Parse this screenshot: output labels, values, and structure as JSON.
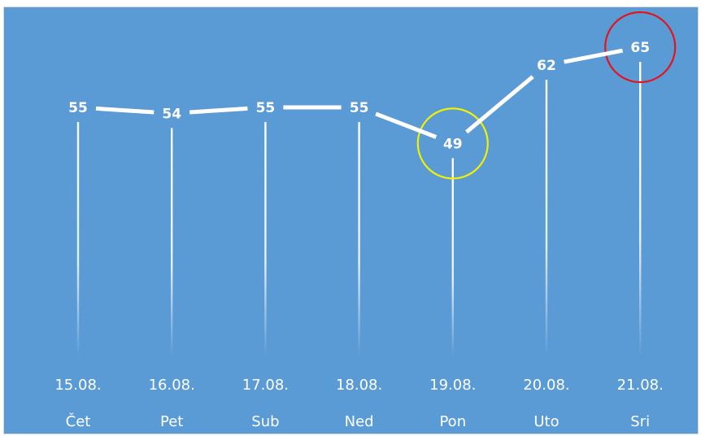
{
  "chart_data": {
    "type": "line",
    "categories": [
      "15.08.",
      "16.08.",
      "17.08.",
      "18.08.",
      "19.08.",
      "20.08.",
      "21.08."
    ],
    "days": [
      "Čet",
      "Pet",
      "Sub",
      "Ned",
      "Pon",
      "Uto",
      "Sri"
    ],
    "values": [
      55,
      54,
      55,
      55,
      49,
      62,
      65
    ],
    "data_labels": [
      "55",
      "54",
      "55",
      "55",
      "49",
      "62",
      "65"
    ],
    "grid": false,
    "legend": "none",
    "highlights": [
      {
        "index": 4,
        "color": "#f2f200"
      },
      {
        "index": 6,
        "color": "#e3141c"
      }
    ],
    "colors": {
      "background": "#5b9bd5",
      "line": "#ffffff",
      "drop_line": "#ffffff",
      "text": "#ffffff"
    }
  }
}
